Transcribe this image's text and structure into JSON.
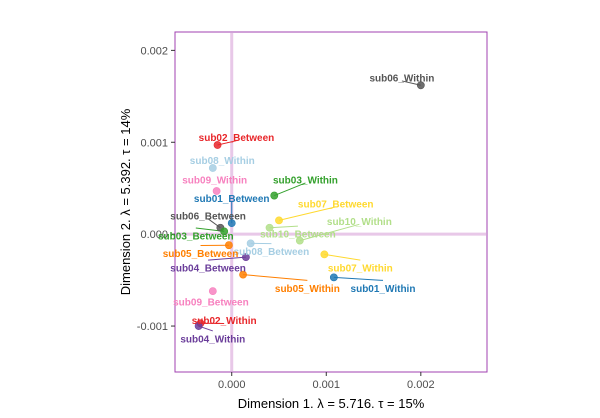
{
  "chart_data": {
    "type": "scatter",
    "xlabel": "Dimension 1.   λ = 5.716.  τ = 15%",
    "ylabel": "Dimension 2.   λ = 5.392.  τ = 14%",
    "xlim": [
      -0.0006,
      0.0027
    ],
    "ylim": [
      -0.0015,
      0.0022
    ],
    "x_ticks": [
      {
        "value": 0.0,
        "label": "0.000"
      },
      {
        "value": 0.001,
        "label": "0.001"
      },
      {
        "value": 0.002,
        "label": "0.002"
      }
    ],
    "y_ticks": [
      {
        "value": -0.001,
        "label": "-0.001"
      },
      {
        "value": 0.0,
        "label": "0.000"
      },
      {
        "value": 0.001,
        "label": "0.001"
      },
      {
        "value": 0.002,
        "label": "0.002"
      }
    ],
    "grid": false,
    "reference_lines": {
      "x": 0,
      "y": 0,
      "color": "#e8c8e8"
    },
    "panel_border_color": "#a040b0",
    "points": [
      {
        "label": "sub06_Within",
        "x": 0.002,
        "y": 0.00162,
        "color": "#555555",
        "lx": 0.0018,
        "ly": 0.0017
      },
      {
        "label": "sub02_Between",
        "x": -0.00015,
        "y": 0.00097,
        "color": "#e8262a",
        "lx": 5e-05,
        "ly": 0.00105
      },
      {
        "label": "sub08_Within",
        "x": -0.0002,
        "y": 0.00072,
        "color": "#a6cee3",
        "lx": -0.0001,
        "ly": 0.0008
      },
      {
        "label": "sub09_Within",
        "x": -0.00016,
        "y": 0.00047,
        "color": "#f781bf",
        "lx": -0.00018,
        "ly": 0.00059
      },
      {
        "label": "sub03_Within",
        "x": 0.00045,
        "y": 0.00042,
        "color": "#33a02c",
        "lx": 0.00078,
        "ly": 0.00059
      },
      {
        "label": "sub01_Between",
        "x": 0.0,
        "y": 0.00012,
        "color": "#1f78b4",
        "lx": 0.0,
        "ly": 0.00039
      },
      {
        "label": "sub07_Between",
        "x": 0.0005,
        "y": 0.00015,
        "color": "#ffd92f",
        "lx": 0.0011,
        "ly": 0.00033
      },
      {
        "label": "sub06_Between",
        "x": -0.00012,
        "y": 7e-05,
        "color": "#555555",
        "lx": -0.00025,
        "ly": 0.0002
      },
      {
        "label": "sub10_Within",
        "x": 0.00072,
        "y": -7e-05,
        "color": "#b2df8a",
        "lx": 0.00135,
        "ly": 0.00014
      },
      {
        "label": "sub03_Between",
        "x": -8e-05,
        "y": 3e-05,
        "color": "#33a02c",
        "lx": -0.00038,
        "ly": -2e-05
      },
      {
        "label": "sub10_Between",
        "x": 0.0004,
        "y": 7e-05,
        "color": "#b2df8a",
        "lx": 0.0007,
        "ly": 0.0
      },
      {
        "label": "sub08_Between",
        "x": 0.0002,
        "y": -0.0001,
        "color": "#a6cee3",
        "lx": 0.00042,
        "ly": -0.00019
      },
      {
        "label": "sub05_Between",
        "x": -3e-05,
        "y": -0.00012,
        "color": "#ff7f00",
        "lx": -0.00033,
        "ly": -0.00021
      },
      {
        "label": "sub04_Between",
        "x": 0.00015,
        "y": -0.00025,
        "color": "#6a3d9a",
        "lx": -0.00025,
        "ly": -0.00037
      },
      {
        "label": "sub07_Within",
        "x": 0.00098,
        "y": -0.00022,
        "color": "#ffd92f",
        "lx": 0.00136,
        "ly": -0.00037
      },
      {
        "label": "sub05_Within",
        "x": 0.00012,
        "y": -0.00044,
        "color": "#ff7f00",
        "lx": 0.0008,
        "ly": -0.00059
      },
      {
        "label": "sub01_Within",
        "x": 0.00108,
        "y": -0.00047,
        "color": "#1f78b4",
        "lx": 0.0016,
        "ly": -0.00059
      },
      {
        "label": "sub09_Between",
        "x": -0.0002,
        "y": -0.00062,
        "color": "#f781bf",
        "lx": -0.00022,
        "ly": -0.00074
      },
      {
        "label": "sub02_Within",
        "x": -0.00033,
        "y": -0.00097,
        "color": "#e8262a",
        "lx": -8e-05,
        "ly": -0.00094
      },
      {
        "label": "sub04_Within",
        "x": -0.00035,
        "y": -0.001,
        "color": "#6a3d9a",
        "lx": -0.0002,
        "ly": -0.00114
      }
    ]
  }
}
